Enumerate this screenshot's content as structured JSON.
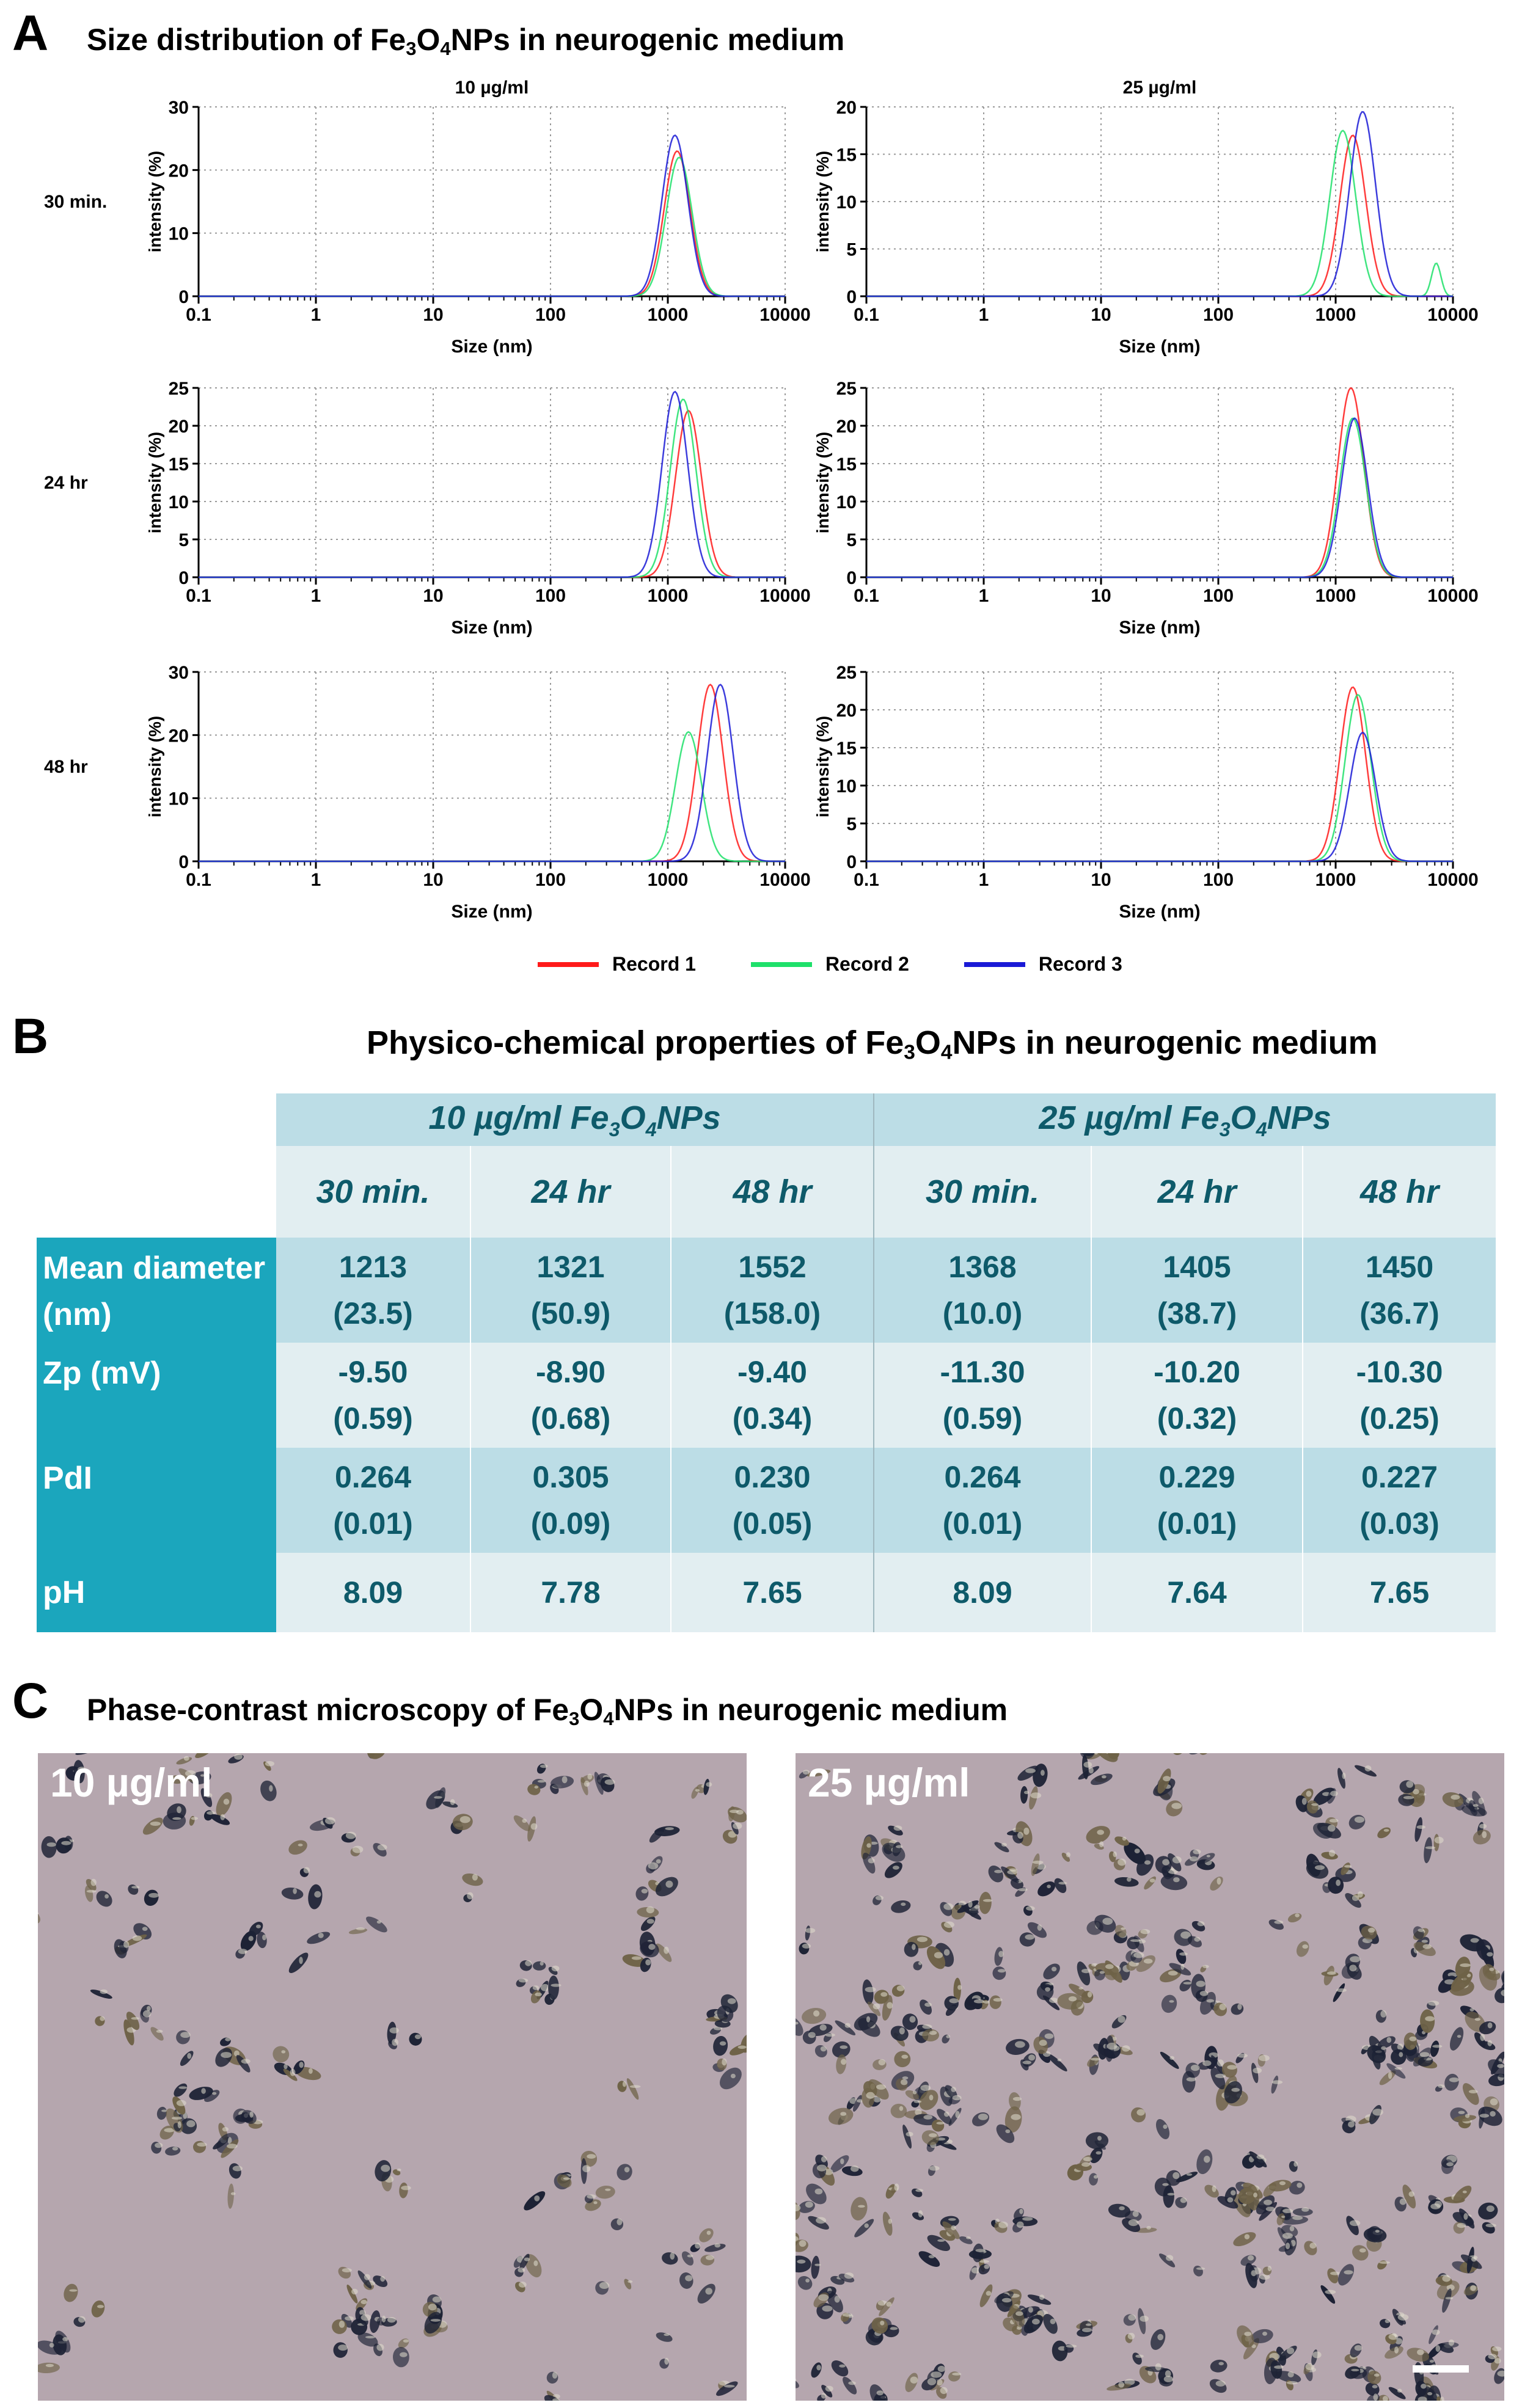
{
  "panel_a": {
    "letter": "A",
    "title_pre": "Size distribution of Fe",
    "title_sub1": "3",
    "title_mid": "O",
    "title_sub2": "4",
    "title_post": "NPs in neurogenic medium"
  },
  "legend": {
    "items": [
      {
        "label": "Record 1",
        "color": "#ff1a1a"
      },
      {
        "label": "Record 2",
        "color": "#1ee06a"
      },
      {
        "label": "Record 3",
        "color": "#1a1ad6"
      }
    ]
  },
  "chart_data": [
    {
      "type": "line",
      "row_label": "30 min.",
      "column_title": "10 µg/ml",
      "xlabel": "Size (nm)",
      "ylabel": "intensity (%)",
      "xscale": "log",
      "x_ticks": [
        "0.1",
        "1",
        "10",
        "100",
        "1000",
        "10000"
      ],
      "ylim": [
        0,
        30
      ],
      "y_ticks": [
        "0",
        "10",
        "20",
        "30"
      ],
      "series": [
        {
          "name": "Record 1",
          "peak_size_nm": 1200,
          "peak_intensity": 23
        },
        {
          "name": "Record 2",
          "peak_size_nm": 1250,
          "peak_intensity": 22
        },
        {
          "name": "Record 3",
          "peak_size_nm": 1150,
          "peak_intensity": 25.5
        }
      ]
    },
    {
      "type": "line",
      "row_label": "30 min.",
      "column_title": "25 µg/ml",
      "xlabel": "Size (nm)",
      "ylabel": "intensity (%)",
      "xscale": "log",
      "x_ticks": [
        "0.1",
        "1",
        "10",
        "100",
        "1000",
        "10000"
      ],
      "ylim": [
        0,
        20
      ],
      "y_ticks": [
        "0",
        "5",
        "10",
        "15",
        "20"
      ],
      "series": [
        {
          "name": "Record 1",
          "peak_size_nm": 1400,
          "peak_intensity": 17
        },
        {
          "name": "Record 2",
          "peak_size_nm": 1150,
          "peak_intensity": 17.5,
          "second_peak_size_nm": 7200,
          "second_peak_intensity": 3.5
        },
        {
          "name": "Record 3",
          "peak_size_nm": 1700,
          "peak_intensity": 19.5
        }
      ]
    },
    {
      "type": "line",
      "row_label": "24 hr",
      "column_title": "",
      "xlabel": "Size (nm)",
      "ylabel": "intensity (%)",
      "xscale": "log",
      "x_ticks": [
        "0.1",
        "1",
        "10",
        "100",
        "1000",
        "10000"
      ],
      "ylim": [
        0,
        25
      ],
      "y_ticks": [
        "0",
        "5",
        "10",
        "15",
        "20",
        "25"
      ],
      "series": [
        {
          "name": "Record 1",
          "peak_size_nm": 1500,
          "peak_intensity": 22
        },
        {
          "name": "Record 2",
          "peak_size_nm": 1350,
          "peak_intensity": 23.5
        },
        {
          "name": "Record 3",
          "peak_size_nm": 1150,
          "peak_intensity": 24.5
        }
      ]
    },
    {
      "type": "line",
      "row_label": "24 hr",
      "column_title": "",
      "xlabel": "Size (nm)",
      "ylabel": "intensity (%)",
      "xscale": "log",
      "x_ticks": [
        "0.1",
        "1",
        "10",
        "100",
        "1000",
        "10000"
      ],
      "ylim": [
        0,
        25
      ],
      "y_ticks": [
        "0",
        "5",
        "10",
        "15",
        "20",
        "25"
      ],
      "series": [
        {
          "name": "Record 1",
          "peak_size_nm": 1350,
          "peak_intensity": 25
        },
        {
          "name": "Record 2",
          "peak_size_nm": 1400,
          "peak_intensity": 21
        },
        {
          "name": "Record 3",
          "peak_size_nm": 1450,
          "peak_intensity": 21
        }
      ]
    },
    {
      "type": "line",
      "row_label": "48 hr",
      "column_title": "",
      "xlabel": "Size (nm)",
      "ylabel": "intensity (%)",
      "xscale": "log",
      "x_ticks": [
        "0.1",
        "1",
        "10",
        "100",
        "1000",
        "10000"
      ],
      "ylim": [
        0,
        30
      ],
      "y_ticks": [
        "0",
        "10",
        "20",
        "30"
      ],
      "series": [
        {
          "name": "Record 1",
          "peak_size_nm": 2300,
          "peak_intensity": 28
        },
        {
          "name": "Record 2",
          "peak_size_nm": 1500,
          "peak_intensity": 20.5
        },
        {
          "name": "Record 3",
          "peak_size_nm": 2800,
          "peak_intensity": 28
        }
      ]
    },
    {
      "type": "line",
      "row_label": "48 hr",
      "column_title": "",
      "xlabel": "Size (nm)",
      "ylabel": "intensity (%)",
      "xscale": "log",
      "x_ticks": [
        "0.1",
        "1",
        "10",
        "100",
        "1000",
        "10000"
      ],
      "ylim": [
        0,
        25
      ],
      "y_ticks": [
        "0",
        "5",
        "10",
        "15",
        "20",
        "25"
      ],
      "series": [
        {
          "name": "Record 1",
          "peak_size_nm": 1400,
          "peak_intensity": 23
        },
        {
          "name": "Record 2",
          "peak_size_nm": 1550,
          "peak_intensity": 22
        },
        {
          "name": "Record 3",
          "peak_size_nm": 1700,
          "peak_intensity": 17
        }
      ]
    }
  ],
  "panel_b": {
    "letter": "B",
    "title_pre": "Physico-chemical properties of Fe",
    "title_sub1": "3",
    "title_mid": "O",
    "title_sub2": "4",
    "title_post": "NPs  in neurogenic medium",
    "table": {
      "groups": [
        {
          "pre": "10 µg/ml Fe",
          "sub1": "3",
          "mid": "O",
          "sub2": "4",
          "post": "NPs"
        },
        {
          "pre": "25 µg/ml Fe",
          "sub1": "3",
          "mid": "O",
          "sub2": "4",
          "post": "NPs"
        }
      ],
      "times": [
        "30 min.",
        "24 hr",
        "48 hr",
        "30 min.",
        "24 hr",
        "48 hr"
      ],
      "rows": [
        {
          "label": "Mean diameter (nm)",
          "values": [
            [
              "1213",
              "(23.5)"
            ],
            [
              "1321",
              "(50.9)"
            ],
            [
              "1552",
              "(158.0)"
            ],
            [
              "1368",
              "(10.0)"
            ],
            [
              "1405",
              "(38.7)"
            ],
            [
              "1450",
              "(36.7)"
            ]
          ]
        },
        {
          "label": "Zp (mV)",
          "values": [
            [
              "-9.50",
              "(0.59)"
            ],
            [
              "-8.90",
              "(0.68)"
            ],
            [
              "-9.40",
              "(0.34)"
            ],
            [
              "-11.30",
              "(0.59)"
            ],
            [
              "-10.20",
              "(0.32)"
            ],
            [
              "-10.30",
              "(0.25)"
            ]
          ]
        },
        {
          "label": "PdI",
          "values": [
            [
              "0.264",
              "(0.01)"
            ],
            [
              "0.305",
              "(0.09)"
            ],
            [
              "0.230",
              "(0.05)"
            ],
            [
              "0.264",
              "(0.01)"
            ],
            [
              "0.229",
              "(0.01)"
            ],
            [
              "0.227",
              "(0.03)"
            ]
          ]
        },
        {
          "label": "pH",
          "values": [
            [
              "8.09"
            ],
            [
              "7.78"
            ],
            [
              "7.65"
            ],
            [
              "8.09"
            ],
            [
              "7.64"
            ],
            [
              "7.65"
            ]
          ]
        }
      ]
    }
  },
  "panel_c": {
    "letter": "C",
    "title_pre": "Phase-contrast microscopy of Fe",
    "title_sub1": "3",
    "title_mid": "O",
    "title_sub2": "4",
    "title_post": "NPs in neurogenic medium",
    "images": [
      {
        "label": "10 µg/ml"
      },
      {
        "label": "25 µg/ml"
      }
    ]
  }
}
